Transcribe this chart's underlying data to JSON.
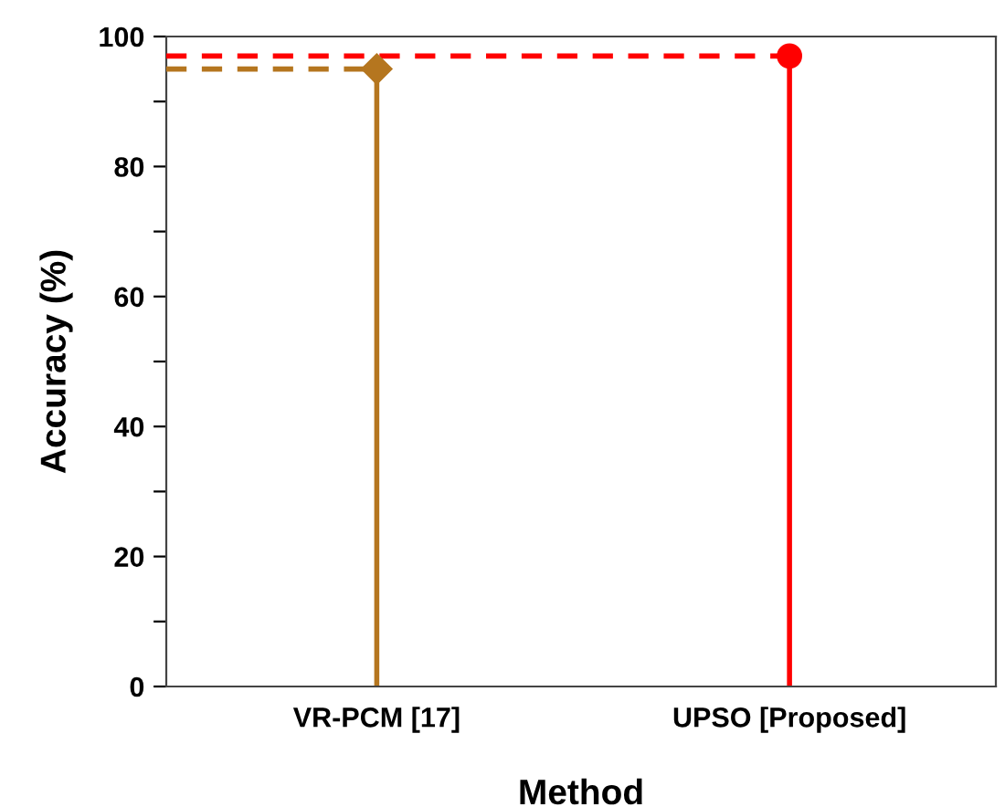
{
  "chart_data": {
    "type": "lollipop",
    "xlabel": "Method",
    "ylabel": "Accuracy (%)",
    "categories": [
      "VR-PCM [17]",
      "UPSO [Proposed]"
    ],
    "series": [
      {
        "color": "#b5761f",
        "marker": "diamond",
        "values": [
          95,
          null
        ]
      },
      {
        "color": "#ff0000",
        "marker": "circle",
        "values": [
          null,
          97
        ]
      }
    ],
    "ref_lines": [
      {
        "axis": "y",
        "value": 95,
        "color": "#b5761f",
        "line_style": "dashed",
        "label": null
      },
      {
        "axis": "y",
        "value": 97,
        "color": "#ff0000",
        "line_style": "dashed",
        "label": null
      }
    ],
    "ylim": [
      0,
      100
    ],
    "yticks": [
      0,
      {
        "value": 10,
        "label": null
      },
      20,
      {
        "value": 30,
        "label": null
      },
      40,
      {
        "value": 50,
        "label": null
      },
      60,
      {
        "value": 70,
        "label": null
      },
      80,
      {
        "value": 90,
        "label": null
      },
      100
    ],
    "grid": false,
    "legend": false
  }
}
